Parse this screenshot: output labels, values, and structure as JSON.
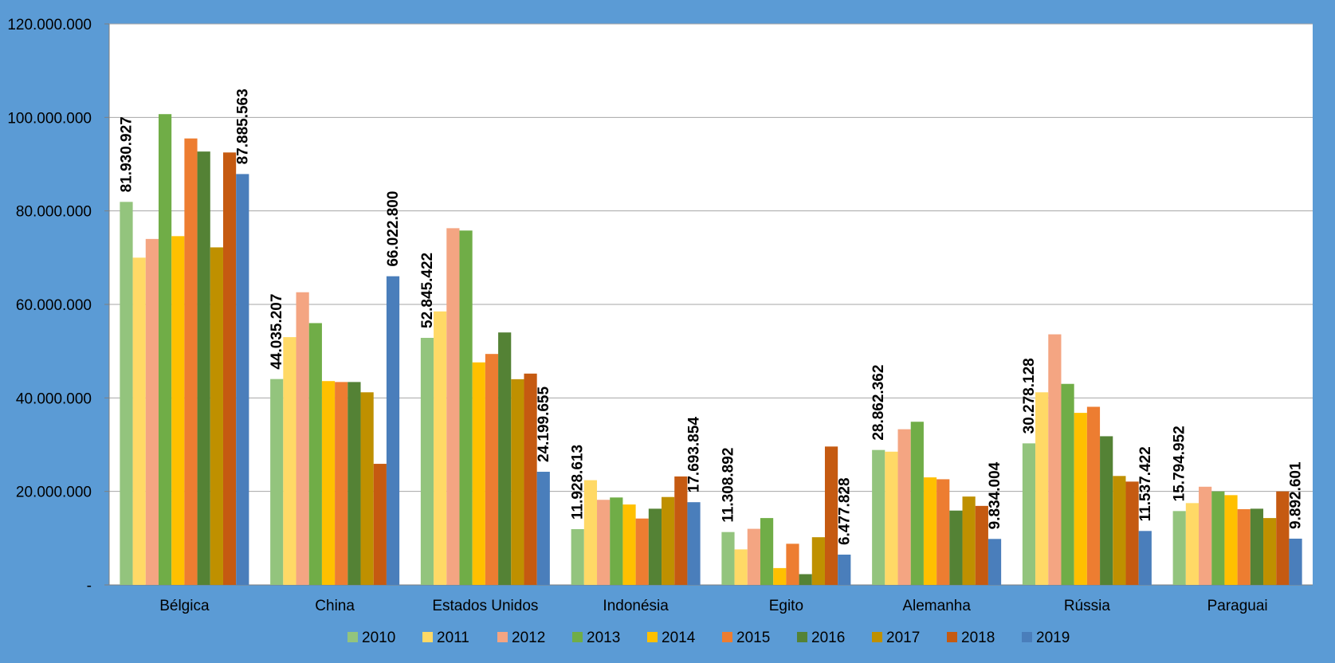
{
  "chart_data": {
    "type": "bar",
    "categories": [
      "Bélgica",
      "China",
      "Estados Unidos",
      "Indonésia",
      "Egito",
      "Alemanha",
      "Rússia",
      "Paraguai"
    ],
    "series": [
      {
        "name": "2010",
        "color": "#93c47d",
        "values": [
          81930927,
          44035207,
          52845422,
          11928613,
          11308892,
          28862362,
          30278128,
          15794952
        ]
      },
      {
        "name": "2011",
        "color": "#ffd966",
        "values": [
          70000000,
          53000000,
          58500000,
          22400000,
          7600000,
          28500000,
          41200000,
          17500000
        ]
      },
      {
        "name": "2012",
        "color": "#f4a582",
        "values": [
          74000000,
          62600000,
          76300000,
          18200000,
          12000000,
          33300000,
          53600000,
          21000000
        ]
      },
      {
        "name": "2013",
        "color": "#70ad47",
        "values": [
          100700000,
          56000000,
          75800000,
          18700000,
          14300000,
          34900000,
          43000000,
          20000000
        ]
      },
      {
        "name": "2014",
        "color": "#ffc000",
        "values": [
          74600000,
          43600000,
          47600000,
          17200000,
          3600000,
          23000000,
          36800000,
          19200000
        ]
      },
      {
        "name": "2015",
        "color": "#ed7d31",
        "values": [
          95500000,
          43400000,
          49400000,
          14200000,
          8800000,
          22600000,
          38100000,
          16200000
        ]
      },
      {
        "name": "2016",
        "color": "#548235",
        "values": [
          92700000,
          43400000,
          54000000,
          16300000,
          2300000,
          15900000,
          31800000,
          16300000
        ]
      },
      {
        "name": "2017",
        "color": "#bf9000",
        "values": [
          72200000,
          41200000,
          44000000,
          18800000,
          10200000,
          18900000,
          23300000,
          14300000
        ]
      },
      {
        "name": "2018",
        "color": "#c55a11",
        "values": [
          92500000,
          25900000,
          45200000,
          23200000,
          29600000,
          16900000,
          22100000,
          20000000
        ]
      },
      {
        "name": "2019",
        "color": "#4a7ebb",
        "values": [
          87885563,
          66022800,
          24199655,
          17693854,
          6477828,
          9834004,
          11537422,
          9892601
        ]
      }
    ],
    "data_labels": {
      "2010": [
        "81.930.927",
        "44.035.207",
        "52.845.422",
        "11.928.613",
        "11.308.892",
        "28.862.362",
        "30.278.128",
        "15.794.952"
      ],
      "2019": [
        "87.885.563",
        "66.022.800",
        "24.199.655",
        "17.693.854",
        "6.477.828",
        "9.834.004",
        "11.537.422",
        "9.892.601"
      ]
    },
    "yticks": [
      {
        "value": 0,
        "label": "-"
      },
      {
        "value": 20000000,
        "label": "20.000.000"
      },
      {
        "value": 40000000,
        "label": "40.000.000"
      },
      {
        "value": 60000000,
        "label": "60.000.000"
      },
      {
        "value": 80000000,
        "label": "80.000.000"
      },
      {
        "value": 100000000,
        "label": "100.000.000"
      },
      {
        "value": 120000000,
        "label": "120.000.000"
      }
    ],
    "ylim": [
      0,
      120000000
    ],
    "grid": true,
    "legend_position": "bottom",
    "colors": {
      "page_background": "#5b9bd5",
      "plot_background": "#ffffff",
      "gridline": "#a6a6a6"
    }
  }
}
